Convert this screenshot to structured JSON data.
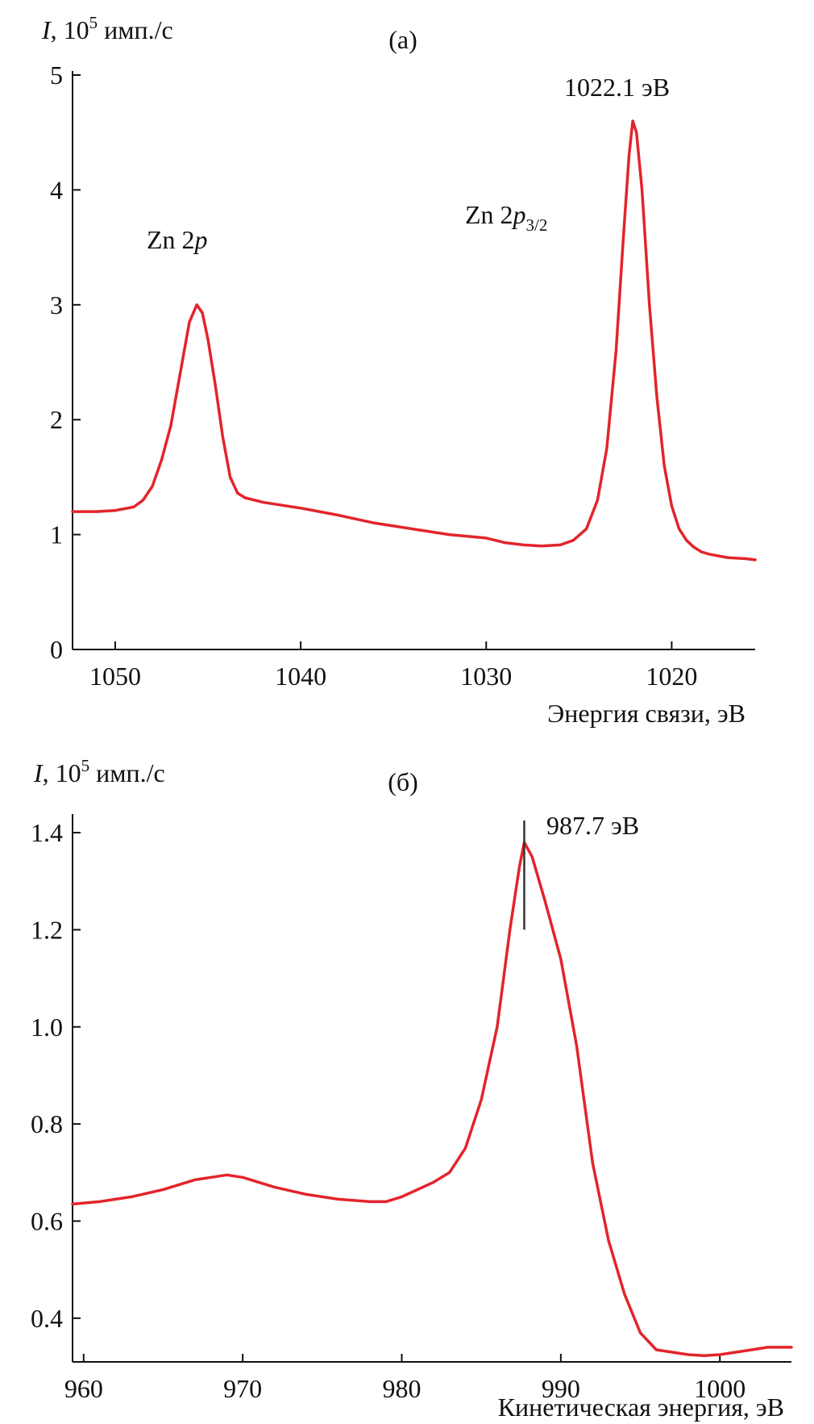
{
  "colors": {
    "curve": "#e3242b",
    "axis": "#111111",
    "marker": "#333333"
  },
  "chart_data": [
    {
      "type": "line",
      "panel_label": "(а)",
      "ylabel_italic": "I",
      "ylabel_rest": ", 10",
      "ylabel_exp": "5",
      "ylabel_unit": " имп./с",
      "xlabel": "Энергия связи, эВ",
      "xlim": [
        1052.3,
        1015.5
      ],
      "ylim": [
        0,
        5
      ],
      "x_reversed": true,
      "x_ticks": [
        1050,
        1040,
        1030,
        1020
      ],
      "x_tick_labels": [
        "1050",
        "1040",
        "1030",
        "1020"
      ],
      "y_ticks": [
        0,
        1,
        2,
        3,
        4,
        5
      ],
      "y_tick_labels": [
        "0",
        "1",
        "2",
        "3",
        "4",
        "5"
      ],
      "annotations": {
        "peak1_main": "Zn 2",
        "peak1_italic": "p",
        "peak2_main": "Zn 2",
        "peak2_italic": "p",
        "peak2_sub": "3/2",
        "peak2_energy": "1022.1 эВ"
      },
      "series": [
        {
          "x": [
            1052.3,
            1051,
            1050,
            1049,
            1048.5,
            1048,
            1047.5,
            1047,
            1046.5,
            1046,
            1045.6,
            1045.3,
            1045,
            1044.6,
            1044.2,
            1043.8,
            1043.4,
            1043,
            1042,
            1040,
            1038,
            1036,
            1034,
            1032,
            1030,
            1029,
            1028,
            1027,
            1026,
            1025.3,
            1024.6,
            1024,
            1023.5,
            1023,
            1022.6,
            1022.3,
            1022.1,
            1021.9,
            1021.6,
            1021.2,
            1020.8,
            1020.4,
            1020,
            1019.6,
            1019.2,
            1018.8,
            1018.4,
            1018,
            1017,
            1016,
            1015.5
          ],
          "y": [
            1.2,
            1.2,
            1.21,
            1.24,
            1.3,
            1.42,
            1.65,
            1.95,
            2.4,
            2.85,
            3.0,
            2.93,
            2.7,
            2.3,
            1.85,
            1.5,
            1.36,
            1.32,
            1.28,
            1.23,
            1.17,
            1.1,
            1.05,
            1.0,
            0.97,
            0.93,
            0.91,
            0.9,
            0.91,
            0.95,
            1.05,
            1.3,
            1.75,
            2.6,
            3.6,
            4.3,
            4.6,
            4.5,
            4.0,
            3.0,
            2.2,
            1.6,
            1.25,
            1.05,
            0.95,
            0.89,
            0.85,
            0.83,
            0.8,
            0.79,
            0.78
          ]
        }
      ]
    },
    {
      "type": "line",
      "panel_label": "(б)",
      "ylabel_italic": "I",
      "ylabel_rest": ", 10",
      "ylabel_exp": "5",
      "ylabel_unit": " имп./с",
      "xlabel": "Кинетическая энергия, эВ",
      "xlim": [
        959.3,
        1004.5
      ],
      "ylim": [
        0.31,
        1.43
      ],
      "x_reversed": false,
      "x_ticks": [
        960,
        970,
        980,
        990,
        1000
      ],
      "x_tick_labels": [
        "960",
        "970",
        "980",
        "990",
        "1000"
      ],
      "y_ticks": [
        0.4,
        0.6,
        0.8,
        1.0,
        1.2,
        1.4
      ],
      "y_tick_labels": [
        "0.4",
        "0.6",
        "0.8",
        "1.0",
        "1.2",
        "1.4"
      ],
      "annotations": {
        "peak_energy": "987.7 эВ",
        "marker_x": 987.7,
        "marker_y_top": 1.425,
        "marker_y_bottom": 1.2
      },
      "series": [
        {
          "x": [
            959.3,
            961,
            963,
            965,
            967,
            968,
            969,
            970,
            972,
            974,
            976,
            978,
            979,
            980,
            981,
            982,
            983,
            984,
            985,
            986,
            986.8,
            987.4,
            987.7,
            988.2,
            989,
            990,
            991,
            992,
            993,
            994,
            995,
            996,
            997,
            998,
            999,
            1000,
            1001,
            1002,
            1003,
            1004.5
          ],
          "y": [
            0.635,
            0.64,
            0.65,
            0.665,
            0.685,
            0.69,
            0.695,
            0.69,
            0.67,
            0.655,
            0.645,
            0.64,
            0.64,
            0.65,
            0.665,
            0.68,
            0.7,
            0.75,
            0.85,
            1.0,
            1.2,
            1.33,
            1.38,
            1.35,
            1.26,
            1.14,
            0.96,
            0.72,
            0.56,
            0.45,
            0.37,
            0.335,
            0.33,
            0.325,
            0.323,
            0.325,
            0.33,
            0.335,
            0.34,
            0.34
          ]
        }
      ]
    }
  ]
}
